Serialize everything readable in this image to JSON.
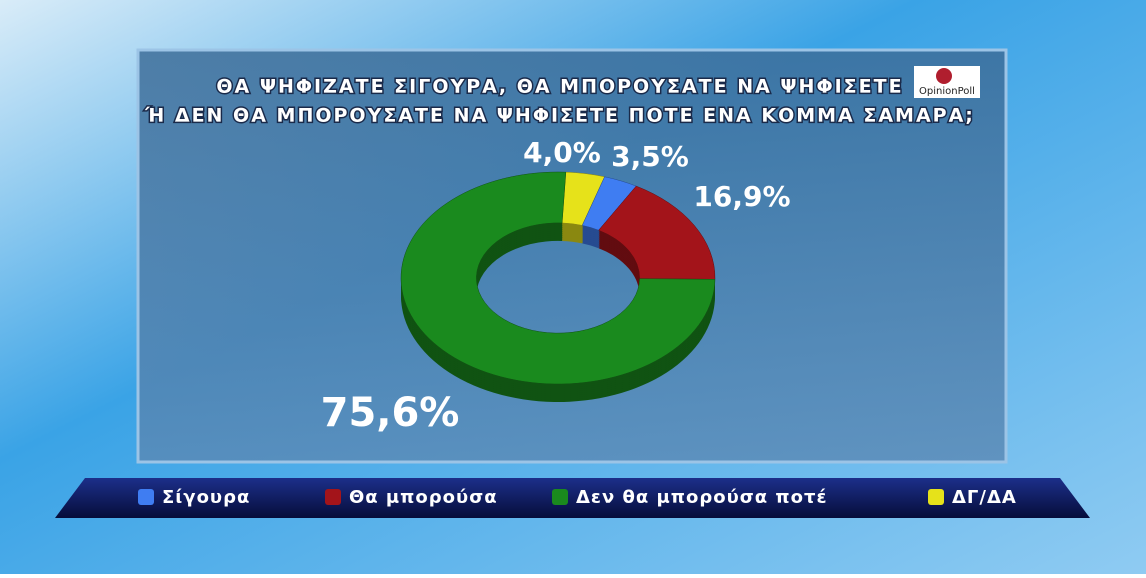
{
  "chart_data": {
    "type": "donut",
    "title": [
      "ΘΑ ΨΗΦΙΖΑΤΕ ΣΙΓΟΥΡΑ, ΘΑ ΜΠΟΡΟΥΣΑΤΕ ΝΑ ΨΗΦΙΣΕΤΕ",
      "Ή ΔΕΝ ΘΑ ΜΠΟΡΟΥΣΑΤΕ ΝΑ ΨΗΦΙΣΕΤΕ ΠΟΤΕ ΕΝΑ ΚΟΜΜΑ ΣΑΜΑΡΑ;"
    ],
    "categories": [
      "Σίγουρα",
      "Θα μπορούσα",
      "Δεν θα μπορούσα ποτέ",
      "ΔΓ/ΔΑ"
    ],
    "values": [
      3.5,
      16.9,
      75.6,
      4.0
    ],
    "value_labels": [
      "3,5%",
      "16,9%",
      "75,6%",
      "4,0%"
    ],
    "colors": [
      "#3f7df2",
      "#a3141a",
      "#1a8a1e",
      "#e6e21a"
    ]
  },
  "logo": "OpinionPoll"
}
